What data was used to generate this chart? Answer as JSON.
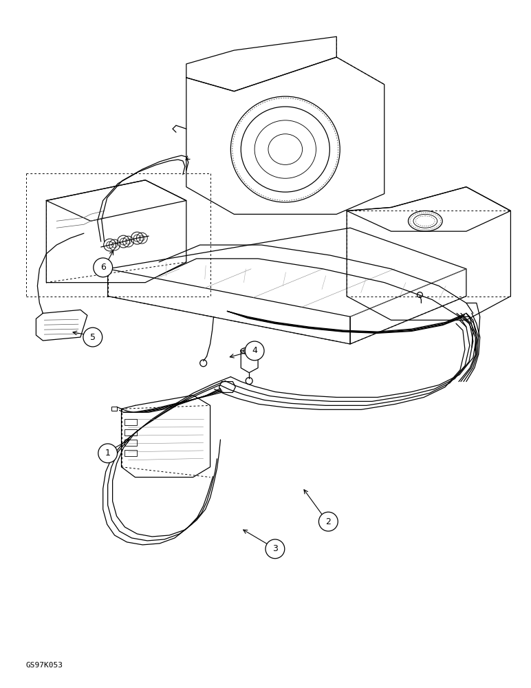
{
  "background_color": "#ffffff",
  "line_color": "#000000",
  "watermark": "GS97K053",
  "fig_width": 7.72,
  "fig_height": 10.0,
  "dpi": 100,
  "lw": 0.9
}
